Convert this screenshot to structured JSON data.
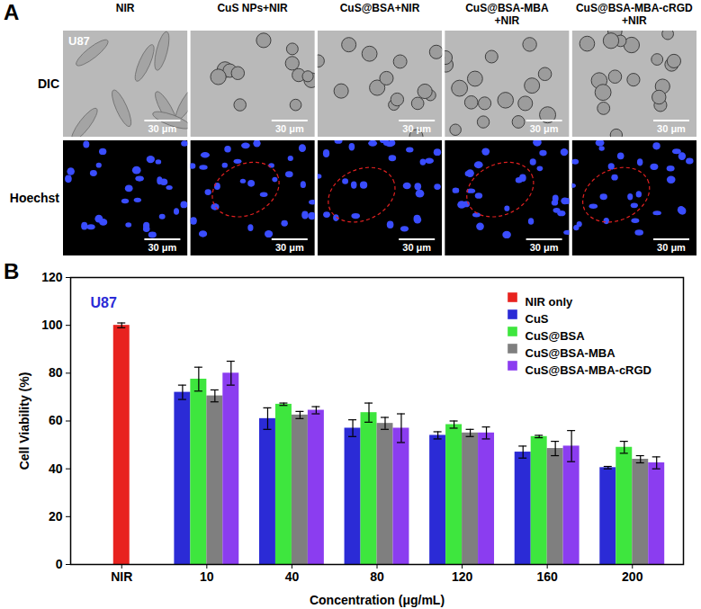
{
  "figure": {
    "panel_a": {
      "label": "A",
      "cell_line": "U87",
      "columns": [
        [
          "NIR"
        ],
        [
          "CuS NPs+NIR"
        ],
        [
          "CuS@BSA+NIR"
        ],
        [
          "CuS@BSA-MBA",
          "+NIR"
        ],
        [
          "CuS@BSA-MBA-cRGD",
          "+NIR"
        ]
      ],
      "rows": [
        "DIC",
        "Hoechst"
      ],
      "scale_bar": "30 μm"
    },
    "panel_b_label": "B"
  },
  "chart_data": {
    "type": "bar",
    "annotations": [
      "U87"
    ],
    "x_label": "Concentration (μg/mL)",
    "y_label": "Cell Viability (%)",
    "categories": [
      "NIR",
      "10",
      "40",
      "80",
      "120",
      "160",
      "200"
    ],
    "series": [
      {
        "name": "NIR only",
        "color": "#e8231f",
        "values": [
          100,
          null,
          null,
          null,
          null,
          null,
          null
        ],
        "errors": [
          1,
          null,
          null,
          null,
          null,
          null,
          null
        ]
      },
      {
        "name": "CuS",
        "color": "#2b2bd6",
        "values": [
          null,
          72,
          61,
          57,
          54,
          47,
          40.5
        ],
        "errors": [
          null,
          3,
          4.5,
          3.5,
          1.5,
          2.5,
          0.5
        ]
      },
      {
        "name": "CuS@BSA",
        "color": "#3ee63e",
        "values": [
          null,
          77.5,
          67,
          63.5,
          58.5,
          53.5,
          49
        ],
        "errors": [
          null,
          5,
          0.5,
          4,
          1.5,
          0.5,
          2.5
        ]
      },
      {
        "name": "CuS@BSA-MBA",
        "color": "#7f7f7f",
        "values": [
          null,
          70.5,
          62.5,
          59,
          55,
          48.5,
          44
        ],
        "errors": [
          null,
          2.5,
          1.5,
          2.5,
          1.5,
          3,
          1.5
        ]
      },
      {
        "name": "CuS@BSA-MBA-cRGD",
        "color": "#8b3df0",
        "values": [
          null,
          80,
          64.5,
          57,
          55,
          49.5,
          42.5
        ],
        "errors": [
          null,
          5,
          1.5,
          6,
          2.5,
          6.5,
          2.5
        ]
      }
    ],
    "ylim": [
      0,
      120
    ],
    "yticks": [
      0,
      20,
      40,
      60,
      80,
      100,
      120
    ],
    "legend": "top-right",
    "grid": false
  }
}
